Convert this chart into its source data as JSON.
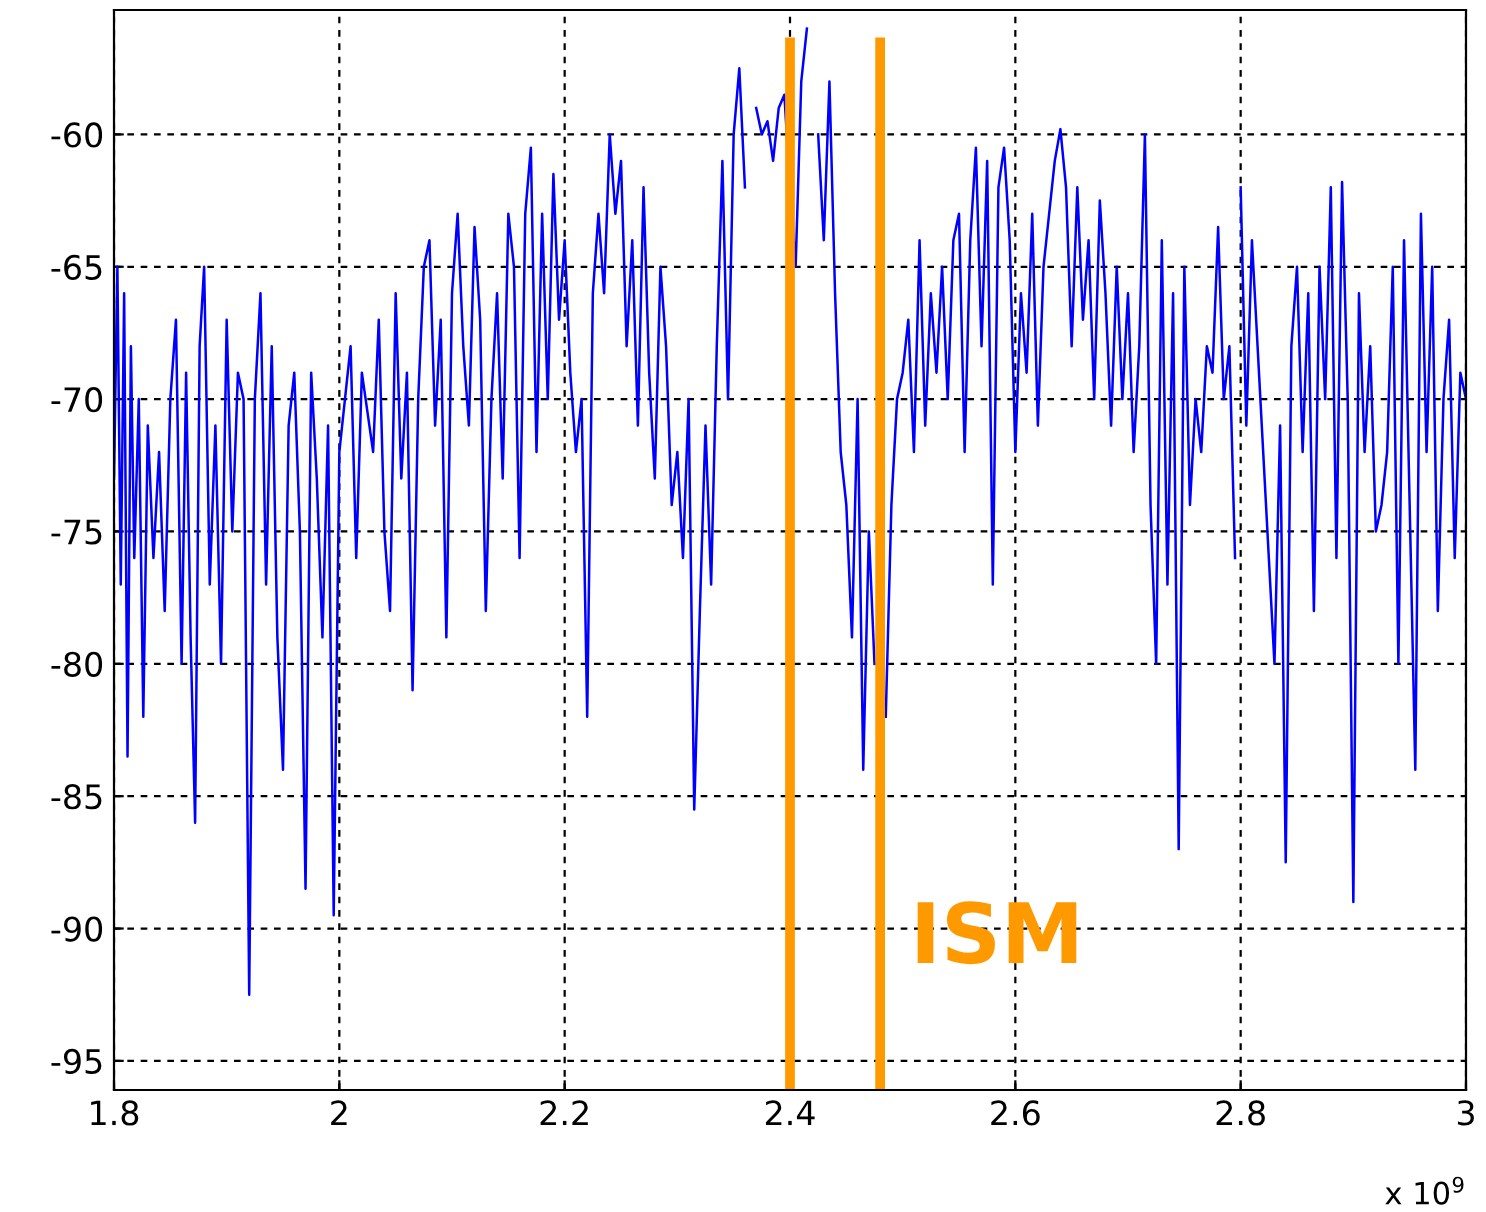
{
  "chart_data": {
    "type": "line",
    "x": [
      1.8,
      1.803,
      1.806,
      1.809,
      1.812,
      1.815,
      1.818,
      1.822,
      1.826,
      1.83,
      1.835,
      1.84,
      1.845,
      1.85,
      1.855,
      1.86,
      1.864,
      1.868,
      1.872,
      1.876,
      1.88,
      1.885,
      1.89,
      1.895,
      1.9,
      1.905,
      1.91,
      1.915,
      1.92,
      1.925,
      1.93,
      1.935,
      1.94,
      1.945,
      1.95,
      1.955,
      1.96,
      1.965,
      1.97,
      1.975,
      1.98,
      1.985,
      1.99,
      1.995,
      2.0,
      2.005,
      2.01,
      2.015,
      2.02,
      2.03,
      2.035,
      2.04,
      2.045,
      2.05,
      2.055,
      2.06,
      2.065,
      2.07,
      2.075,
      2.08,
      2.085,
      2.09,
      2.095,
      2.1,
      2.105,
      2.11,
      2.115,
      2.12,
      2.125,
      2.13,
      2.135,
      2.14,
      2.145,
      2.15,
      2.155,
      2.16,
      2.165,
      2.17,
      2.175,
      2.18,
      2.185,
      2.19,
      2.195,
      2.2,
      2.205,
      2.21,
      2.215,
      2.22,
      2.225,
      2.23,
      2.235,
      2.24,
      2.245,
      2.25,
      2.255,
      2.26,
      2.265,
      2.27,
      2.275,
      2.28,
      2.285,
      2.29,
      2.295,
      2.3,
      2.305,
      2.31,
      2.315,
      2.32,
      2.325,
      2.33,
      2.335,
      2.34,
      2.345,
      2.35,
      2.355,
      2.36,
      2.365,
      2.37,
      2.375,
      2.38,
      2.385,
      2.39,
      2.395,
      2.4,
      2.405,
      2.41,
      2.415,
      2.42,
      2.425,
      2.43,
      2.435,
      2.44,
      2.445,
      2.45,
      2.455,
      2.46,
      2.465,
      2.47,
      2.475,
      2.48,
      2.485,
      2.49,
      2.495,
      2.5,
      2.505,
      2.51,
      2.515,
      2.52,
      2.525,
      2.53,
      2.535,
      2.54,
      2.545,
      2.55,
      2.555,
      2.56,
      2.565,
      2.57,
      2.575,
      2.58,
      2.585,
      2.59,
      2.595,
      2.6,
      2.605,
      2.61,
      2.615,
      2.62,
      2.625,
      2.63,
      2.635,
      2.64,
      2.645,
      2.65,
      2.655,
      2.66,
      2.665,
      2.67,
      2.675,
      2.68,
      2.685,
      2.69,
      2.695,
      2.7,
      2.705,
      2.71,
      2.715,
      2.72,
      2.725,
      2.73,
      2.735,
      2.74,
      2.745,
      2.75,
      2.755,
      2.76,
      2.765,
      2.77,
      2.775,
      2.78,
      2.785,
      2.79,
      2.795,
      2.797,
      2.8,
      2.805,
      2.81,
      2.815,
      2.82,
      2.825,
      2.83,
      2.835,
      2.84,
      2.845,
      2.85,
      2.855,
      2.86,
      2.865,
      2.87,
      2.875,
      2.88,
      2.885,
      2.89,
      2.895,
      2.9,
      2.905,
      2.91,
      2.915,
      2.92,
      2.925,
      2.93,
      2.935,
      2.94,
      2.945,
      2.95,
      2.955,
      2.96,
      2.965,
      2.97,
      2.975,
      2.98,
      2.985,
      2.99,
      2.995,
      3.0
    ],
    "series": [
      {
        "color": "#0000ff",
        "values": [
          -73,
          -65,
          -77,
          -66,
          -83.5,
          -68,
          -76,
          -70,
          -82,
          -71,
          -76,
          -72,
          -78,
          -70,
          -67,
          -80,
          -69,
          -79,
          -86,
          -68,
          -65,
          -77,
          -71,
          -80,
          -67,
          -75,
          -69,
          -70,
          -92.5,
          -70,
          -66,
          -77,
          -68,
          -79,
          -84,
          -71,
          -69,
          -75,
          -88.5,
          -69,
          -73,
          -79,
          -71,
          -89.5,
          -72,
          -70,
          -68,
          -76,
          -69,
          -72,
          -67,
          -75,
          -78,
          -66,
          -73,
          -69,
          -81,
          -70,
          -65,
          -64,
          -71,
          -67,
          -79,
          -66,
          -63,
          -68,
          -71,
          -63.5,
          -67,
          -78,
          -70,
          -66,
          -73,
          -63,
          -65,
          -76,
          -63,
          -60.5,
          -72,
          -63,
          -70,
          -61.5,
          -67,
          -64,
          -69,
          -72,
          -70,
          -82,
          -66,
          -63,
          -66,
          -60,
          -63,
          -61,
          -68,
          -64,
          -71,
          -62,
          -69,
          -73,
          -65,
          -68,
          -74,
          -72,
          -76,
          -70,
          -85.5,
          -78,
          -71,
          -77,
          -68,
          -61,
          -70,
          -60,
          -57.5,
          -62,
          null,
          -59,
          -60,
          -59.5,
          -61,
          -59,
          -58.5,
          -62,
          -65,
          -58,
          -56,
          null,
          -60,
          -64,
          -58,
          -66,
          -72,
          -74,
          -79,
          -70,
          -84,
          -75,
          -80,
          null,
          -82,
          -74,
          -70,
          -69,
          -67,
          -72,
          -64,
          -71,
          -66,
          -69,
          -65,
          -70,
          -64,
          -63,
          -72,
          -64,
          -60.5,
          -68,
          -61,
          -77,
          -62,
          -60.5,
          -64,
          -72,
          -66,
          -69,
          -63,
          -71,
          -65,
          -63,
          -61,
          -59.8,
          -62,
          -68,
          -62,
          -67,
          -64,
          -70,
          -62.5,
          -66,
          -71,
          -65,
          -70,
          -66,
          -72,
          -68,
          -60,
          -74,
          -80,
          -64,
          -77,
          -66,
          -87,
          -65,
          -74,
          -70,
          -72,
          -68,
          -69,
          -63.5,
          -70,
          -68,
          -76,
          null,
          -62,
          -71,
          -64,
          -68,
          -72,
          -76,
          -80,
          -71,
          -87.5,
          -68,
          -65,
          -72,
          -66,
          -78,
          -65,
          -70,
          -62,
          -76,
          -61.8,
          -70,
          -89,
          -66,
          -72,
          -68,
          -75,
          -74,
          -72,
          -65,
          -80,
          -64,
          -74,
          -84,
          -63,
          -72,
          -65,
          -78,
          -70,
          -67,
          -76,
          -69,
          -70
        ]
      }
    ],
    "xlim": [
      1.8,
      3.0
    ],
    "xticks": [
      1.8,
      2,
      2.2,
      2.4,
      2.6,
      2.8,
      3
    ],
    "ylim": [
      -96.1,
      -55.3
    ],
    "yticks": [
      -95,
      -90,
      -85,
      -80,
      -75,
      -70,
      -65,
      -60
    ],
    "grid": true,
    "line_style": "solid",
    "ref_lines": [
      {
        "axis": "x",
        "value": 2.4,
        "color": "#ff9900"
      },
      {
        "axis": "x",
        "value": 2.48,
        "color": "#ff9900"
      }
    ],
    "annotations": [
      "ISM",
      "x 10$^{9}$"
    ]
  }
}
